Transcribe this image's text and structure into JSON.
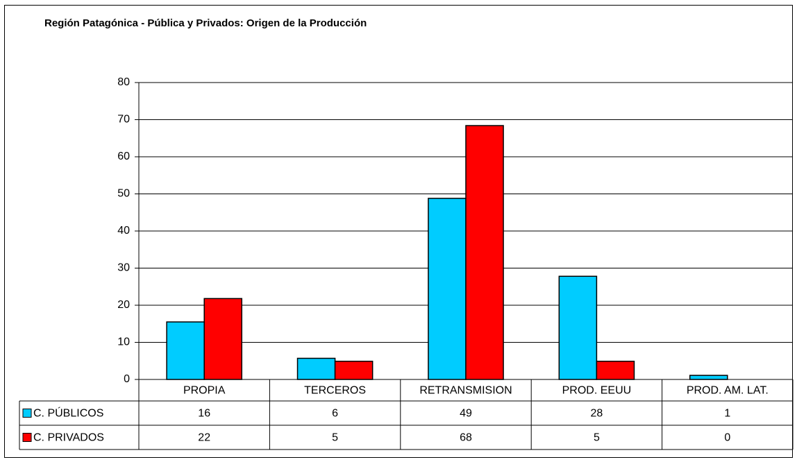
{
  "chart_data": {
    "type": "bar",
    "title": "Región Patagónica - Pública y Privados: Origen de la Producción",
    "categories": [
      "PROPIA",
      "TERCEROS",
      "RETRANSMISION",
      "PROD. EEUU",
      "PROD. AM. LAT."
    ],
    "series": [
      {
        "name": "C. PÚBLICOS",
        "color": "#00ccff",
        "values": [
          15.5,
          5.7,
          48.8,
          27.8,
          1.1
        ],
        "value_labels": [
          "16",
          "6",
          "49",
          "28",
          "1"
        ]
      },
      {
        "name": "C. PRIVADOS",
        "color": "#ff0000",
        "values": [
          21.8,
          4.9,
          68.4,
          4.9,
          0
        ],
        "value_labels": [
          "22",
          "5",
          "68",
          "5",
          "0"
        ]
      }
    ],
    "ylim": [
      0,
      80
    ],
    "yticks": [
      0,
      10,
      20,
      30,
      40,
      50,
      60,
      70,
      80
    ],
    "grid": true
  }
}
